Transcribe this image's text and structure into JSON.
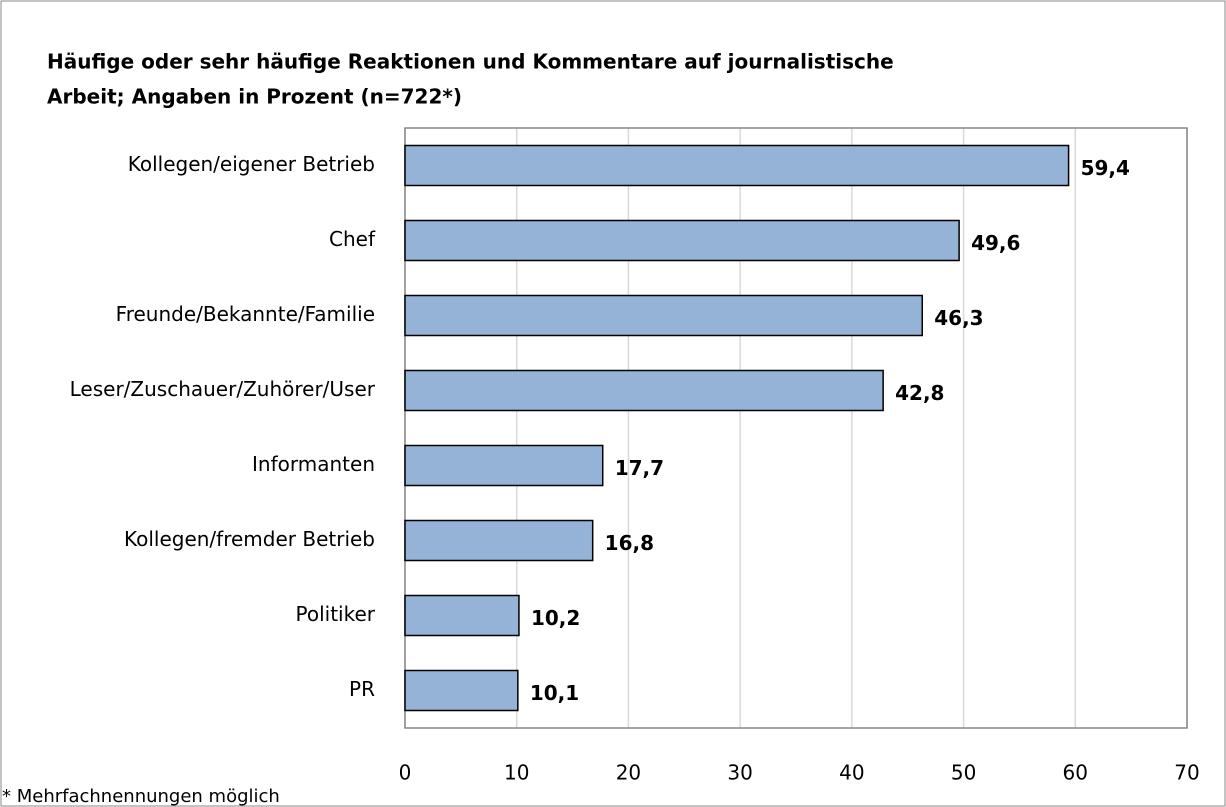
{
  "chart_data": {
    "type": "bar",
    "orientation": "horizontal",
    "title": [
      "Häufige oder sehr häufige Reaktionen und Kommentare auf journalistische",
      "Arbeit; Angaben in Prozent (n=722*)"
    ],
    "categories": [
      "Kollegen/eigener Betrieb",
      "Chef",
      "Freunde/Bekannte/Familie",
      "Leser/Zuschauer/Zuhörer/User",
      "Informanten",
      "Kollegen/fremder Betrieb",
      "Politiker",
      "PR"
    ],
    "values": [
      59.4,
      49.6,
      46.3,
      42.8,
      17.7,
      16.8,
      10.2,
      10.1
    ],
    "value_labels": [
      "59,4",
      "49,6",
      "46,3",
      "42,8",
      "17,7",
      "16,8",
      "10,2",
      "10,1"
    ],
    "color": "#95b3d7",
    "xlim": [
      0,
      70
    ],
    "xticks": [
      0,
      10,
      20,
      30,
      40,
      50,
      60,
      70
    ],
    "grid": true,
    "note": "* Mehrfachnennungen möglich"
  }
}
